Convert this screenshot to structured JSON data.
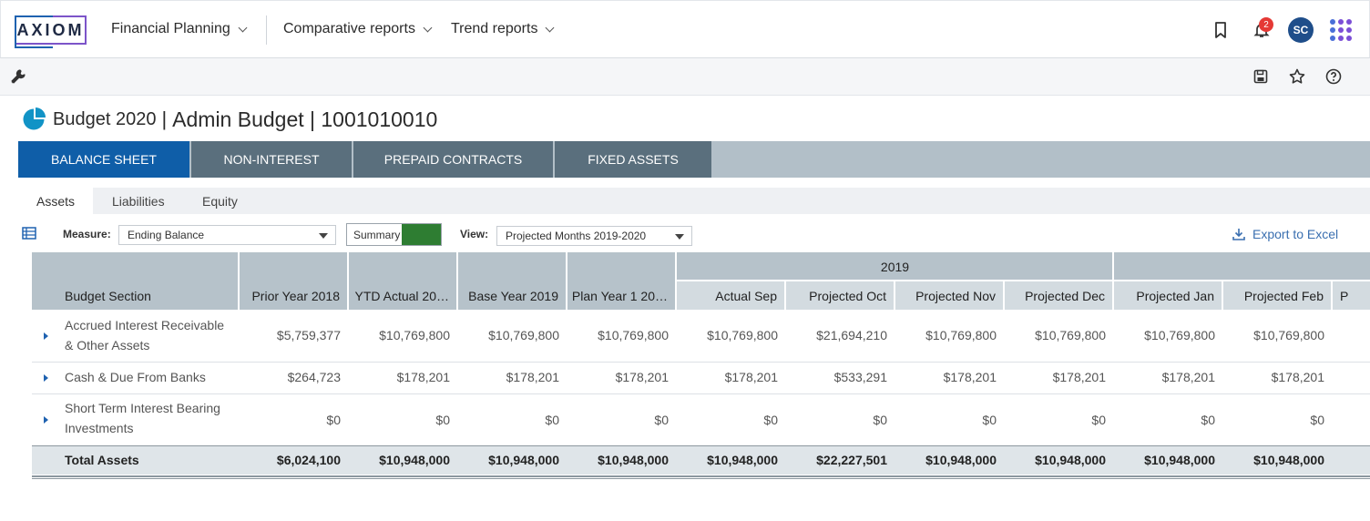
{
  "nav": {
    "logo": "AXIOM",
    "items": [
      {
        "label": "Financial Planning"
      },
      {
        "label": "Comparative reports"
      },
      {
        "label": "Trend reports"
      }
    ],
    "notifications_count": "2",
    "avatar_initials": "SC"
  },
  "page": {
    "title_part1": "Budget 2020",
    "title_sep": "|",
    "title_part2": "Admin Budget | 1001010010"
  },
  "main_tabs": [
    {
      "label": "BALANCE SHEET",
      "active": true
    },
    {
      "label": "NON-INTEREST"
    },
    {
      "label": "PREPAID CONTRACTS"
    },
    {
      "label": "FIXED ASSETS"
    }
  ],
  "sub_tabs": [
    {
      "label": "Assets",
      "active": true
    },
    {
      "label": "Liabilities"
    },
    {
      "label": "Equity"
    }
  ],
  "controls": {
    "measure_label": "Measure:",
    "measure_value": "Ending Balance",
    "summary_label": "Summary",
    "view_label": "View:",
    "view_value": "Projected Months 2019-2020",
    "export_label": "Export to Excel"
  },
  "grid": {
    "group_2019": "2019",
    "columns": [
      "Budget Section",
      "Prior Year 2018",
      "YTD Actual 20…",
      "Base Year 2019",
      "Plan Year 1 20…",
      "Actual Sep",
      "Projected Oct",
      "Projected Nov",
      "Projected Dec",
      "Projected Jan",
      "Projected Feb",
      "P"
    ],
    "rows": [
      {
        "label": "Accrued Interest Receivable & Other Assets",
        "values": [
          "$5,759,377",
          "$10,769,800",
          "$10,769,800",
          "$10,769,800",
          "$10,769,800",
          "$21,694,210",
          "$10,769,800",
          "$10,769,800",
          "$10,769,800",
          "$10,769,800"
        ]
      },
      {
        "label": "Cash & Due From Banks",
        "values": [
          "$264,723",
          "$178,201",
          "$178,201",
          "$178,201",
          "$178,201",
          "$533,291",
          "$178,201",
          "$178,201",
          "$178,201",
          "$178,201"
        ]
      },
      {
        "label": "Short Term Interest Bearing Investments",
        "values": [
          "$0",
          "$0",
          "$0",
          "$0",
          "$0",
          "$0",
          "$0",
          "$0",
          "$0",
          "$0"
        ]
      }
    ],
    "total": {
      "label": "Total Assets",
      "values": [
        "$6,024,100",
        "$10,948,000",
        "$10,948,000",
        "$10,948,000",
        "$10,948,000",
        "$22,227,501",
        "$10,948,000",
        "$10,948,000",
        "$10,948,000",
        "$10,948,000"
      ]
    }
  }
}
